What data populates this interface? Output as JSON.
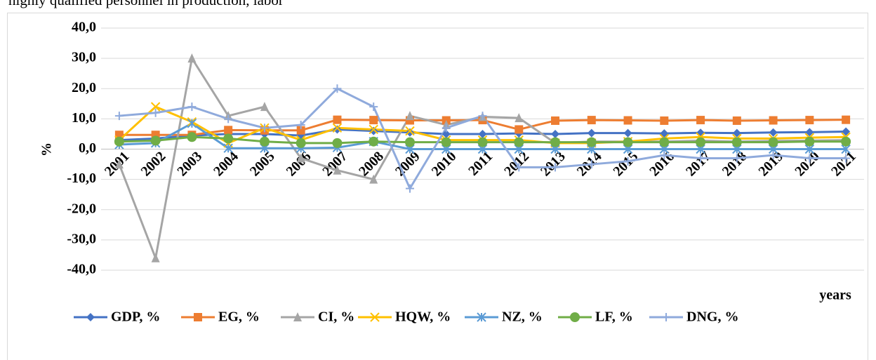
{
  "caption": "highly qualified personnel in production, labor",
  "chart_data": {
    "type": "line",
    "y_label": "%",
    "x_label": "years",
    "categories": [
      "2001",
      "2002",
      "2003",
      "2004",
      "2005",
      "2006",
      "2007",
      "2008",
      "2009",
      "2010",
      "2011",
      "2012",
      "2013",
      "2014",
      "2015",
      "2016",
      "2017",
      "2018",
      "2019",
      "2020",
      "2021"
    ],
    "ylim": [
      -40,
      40
    ],
    "yticks": [
      {
        "value": -40,
        "label": "-40,0"
      },
      {
        "value": -30,
        "label": "-30,0"
      },
      {
        "value": -20,
        "label": "-20,0"
      },
      {
        "value": -10,
        "label": "-10,0"
      },
      {
        "value": 0,
        "label": "0,0"
      },
      {
        "value": 10,
        "label": "10,0"
      },
      {
        "value": 20,
        "label": "20,0"
      },
      {
        "value": 30,
        "label": "30,0"
      },
      {
        "value": 40,
        "label": "40,0"
      }
    ],
    "legend": "bottom",
    "series": [
      {
        "name": "GDP, %",
        "color": "#4472c4",
        "marker": "diamond",
        "values": [
          3,
          3.5,
          4.5,
          5,
          5,
          4.5,
          6.5,
          6,
          5.5,
          5,
          5,
          5.2,
          5,
          5.3,
          5.3,
          5.2,
          5.4,
          5.3,
          5.5,
          5.6,
          5.8
        ]
      },
      {
        "name": "EG, %",
        "color": "#ed7d31",
        "marker": "square",
        "values": [
          4.7,
          4.7,
          4.7,
          6.3,
          6.2,
          6.2,
          9.7,
          9.6,
          9.5,
          9.5,
          9.6,
          6.5,
          9.4,
          9.6,
          9.5,
          9.4,
          9.6,
          9.4,
          9.5,
          9.6,
          9.7
        ]
      },
      {
        "name": "CI, %",
        "color": "#a5a5a5",
        "marker": "triangle",
        "values": [
          -5,
          -36,
          30,
          11,
          14,
          -3,
          -7,
          -10,
          11,
          8,
          10.7,
          10.3,
          2,
          2.5,
          2.5,
          2.5,
          2.8,
          2.5,
          2.7,
          2.8,
          3
        ]
      },
      {
        "name": "HQW, %",
        "color": "#ffc000",
        "marker": "x",
        "values": [
          3,
          14,
          9,
          2,
          7,
          3,
          7,
          6.5,
          6,
          3,
          3,
          3,
          2,
          2,
          2.5,
          3.5,
          4,
          3.5,
          3.5,
          3.8,
          4
        ]
      },
      {
        "name": "NZ, %",
        "color": "#5b9bd5",
        "marker": "star",
        "values": [
          1.5,
          2,
          8.5,
          0.3,
          0.3,
          0.3,
          0.5,
          2.5,
          0,
          0,
          0,
          0,
          0,
          0,
          0,
          0,
          0,
          0,
          0,
          0,
          0
        ]
      },
      {
        "name": "LF, %",
        "color": "#70ad47",
        "marker": "circle",
        "values": [
          2.5,
          2.8,
          4,
          3.5,
          2.5,
          2,
          2,
          2.5,
          2.3,
          2.3,
          2.3,
          2.3,
          2.3,
          2.3,
          2.3,
          2.3,
          2.3,
          2.3,
          2.3,
          2.5,
          2.5
        ]
      },
      {
        "name": "DNG, %",
        "color": "#8faadc",
        "marker": "plus",
        "values": [
          11,
          12,
          14,
          10,
          7,
          8,
          20,
          14,
          -13,
          7,
          11,
          -6,
          -6,
          -5,
          -4,
          -2,
          -3,
          -3,
          -2,
          -3,
          -3
        ]
      }
    ]
  }
}
